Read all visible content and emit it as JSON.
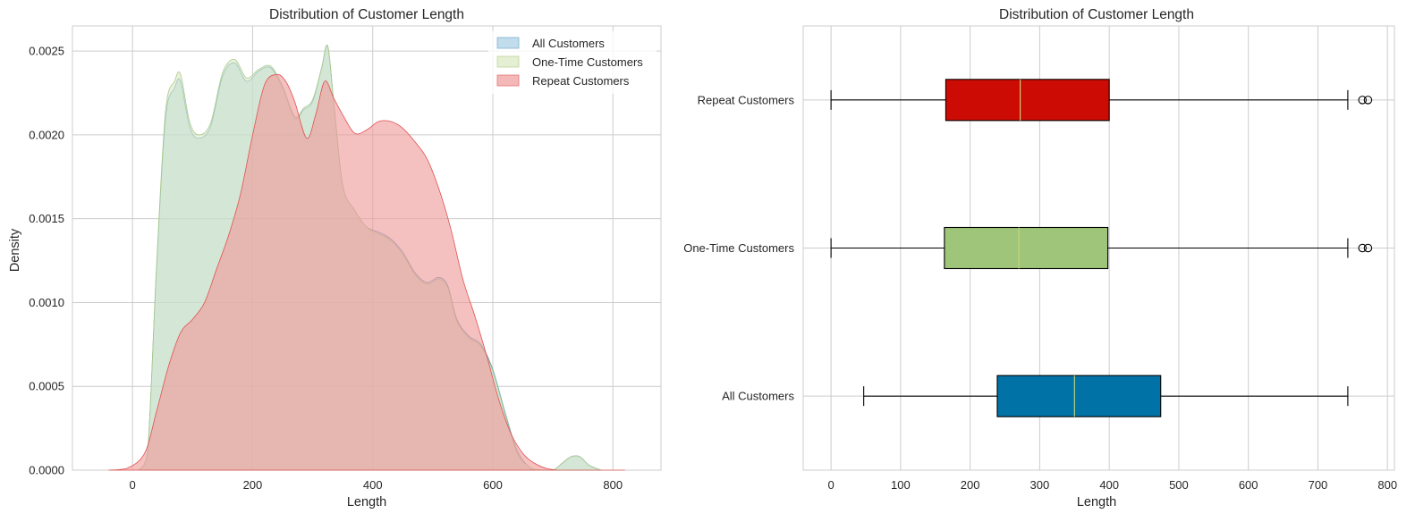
{
  "chart_data": [
    {
      "type": "area",
      "title": "Distribution of Customer Length",
      "xlabel": "Length",
      "ylabel": "Density",
      "xlim": [
        -100,
        880
      ],
      "ylim": [
        0,
        0.00265
      ],
      "xticks": [
        0,
        200,
        400,
        600,
        800
      ],
      "yticks": [
        0.0,
        0.0005,
        0.001,
        0.0015,
        0.002,
        0.0025
      ],
      "ytick_labels": [
        "0.0000",
        "0.0005",
        "0.0010",
        "0.0015",
        "0.0020",
        "0.0025"
      ],
      "grid": true,
      "legend_position": "top-right",
      "series": [
        {
          "name": "All Customers",
          "color": "#a6cde2",
          "x": [
            10,
            25,
            40,
            55,
            70,
            80,
            95,
            110,
            130,
            150,
            170,
            190,
            210,
            230,
            250,
            270,
            285,
            300,
            315,
            325,
            335,
            350,
            370,
            390,
            410,
            430,
            450,
            470,
            490,
            510,
            525,
            540,
            560,
            580,
            600,
            620,
            640,
            660,
            680,
            700,
            715,
            730,
            745,
            760,
            780
          ],
          "y": [
            0.0,
            0.0001,
            0.0012,
            0.0021,
            0.00228,
            0.00232,
            0.00205,
            0.00198,
            0.00205,
            0.00235,
            0.00243,
            0.00232,
            0.00238,
            0.0024,
            0.00228,
            0.0021,
            0.00215,
            0.0022,
            0.0024,
            0.00253,
            0.0022,
            0.0017,
            0.00155,
            0.00145,
            0.00142,
            0.00138,
            0.0013,
            0.00118,
            0.00112,
            0.00115,
            0.0011,
            0.0009,
            0.0008,
            0.00075,
            0.0006,
            0.00035,
            0.00012,
            2e-05,
            0.0,
            0.0,
            4e-05,
            8e-05,
            8e-05,
            3e-05,
            0.0
          ]
        },
        {
          "name": "One-Time Customers",
          "color": "#d9e8c0",
          "x": [
            10,
            25,
            40,
            55,
            70,
            80,
            95,
            110,
            130,
            150,
            170,
            190,
            210,
            230,
            250,
            270,
            285,
            300,
            315,
            325,
            335,
            350,
            370,
            390,
            410,
            430,
            450,
            470,
            490,
            510,
            525,
            540,
            560,
            580,
            600,
            620,
            640,
            660,
            680,
            700,
            715,
            730,
            745,
            760,
            780
          ],
          "y": [
            0.0,
            0.0001,
            0.00122,
            0.00214,
            0.00232,
            0.00236,
            0.00208,
            0.002,
            0.00207,
            0.00237,
            0.00245,
            0.00234,
            0.00239,
            0.00241,
            0.00229,
            0.00211,
            0.00216,
            0.00221,
            0.0024,
            0.00253,
            0.0022,
            0.0017,
            0.00155,
            0.00145,
            0.00141,
            0.00137,
            0.00129,
            0.00117,
            0.00111,
            0.00114,
            0.00109,
            0.00089,
            0.00079,
            0.00074,
            0.00059,
            0.00034,
            0.00011,
            2e-05,
            0.0,
            0.0,
            4e-05,
            8e-05,
            8e-05,
            3e-05,
            0.0
          ]
        },
        {
          "name": "Repeat Customers",
          "color": "#ef9a9a",
          "x": [
            -40,
            -10,
            20,
            40,
            60,
            80,
            100,
            120,
            140,
            160,
            180,
            200,
            220,
            240,
            255,
            270,
            290,
            305,
            320,
            335,
            350,
            370,
            390,
            410,
            430,
            450,
            470,
            490,
            510,
            530,
            550,
            570,
            590,
            610,
            630,
            650,
            670,
            690,
            710,
            740,
            780,
            820
          ],
          "y": [
            0.0,
            1e-05,
            0.0001,
            0.00035,
            0.00062,
            0.00082,
            0.0009,
            0.001,
            0.0012,
            0.0014,
            0.00165,
            0.002,
            0.0023,
            0.00236,
            0.00232,
            0.0022,
            0.00198,
            0.00212,
            0.00232,
            0.00222,
            0.00212,
            0.00201,
            0.00203,
            0.00208,
            0.00208,
            0.00204,
            0.00196,
            0.00186,
            0.00168,
            0.00144,
            0.00114,
            0.00092,
            0.00068,
            0.00042,
            0.00022,
            0.0001,
            4e-05,
            1e-05,
            0.0,
            0.0,
            0.0,
            0.0
          ]
        }
      ]
    },
    {
      "type": "box",
      "title": "Distribution of Customer Length",
      "xlabel": "Length",
      "xlim": [
        -40,
        810
      ],
      "xticks": [
        0,
        100,
        200,
        300,
        400,
        500,
        600,
        700,
        800
      ],
      "grid": true,
      "categories": [
        "All Customers",
        "One-Time Customers",
        "Repeat Customers"
      ],
      "boxes": [
        {
          "name": "All Customers",
          "color": "#0072a6",
          "whisker_low": 47,
          "q1": 239,
          "median": 350,
          "q3": 474,
          "whisker_high": 743,
          "outliers": []
        },
        {
          "name": "One-Time Customers",
          "color": "#9fc57a",
          "whisker_low": 0,
          "q1": 163,
          "median": 270,
          "q3": 398,
          "whisker_high": 743,
          "outliers": [
            764,
            772
          ]
        },
        {
          "name": "Repeat Customers",
          "color": "#cc0c04",
          "whisker_low": 0,
          "q1": 165,
          "median": 272,
          "q3": 400,
          "whisker_high": 743,
          "outliers": [
            764,
            772
          ]
        }
      ]
    }
  ]
}
